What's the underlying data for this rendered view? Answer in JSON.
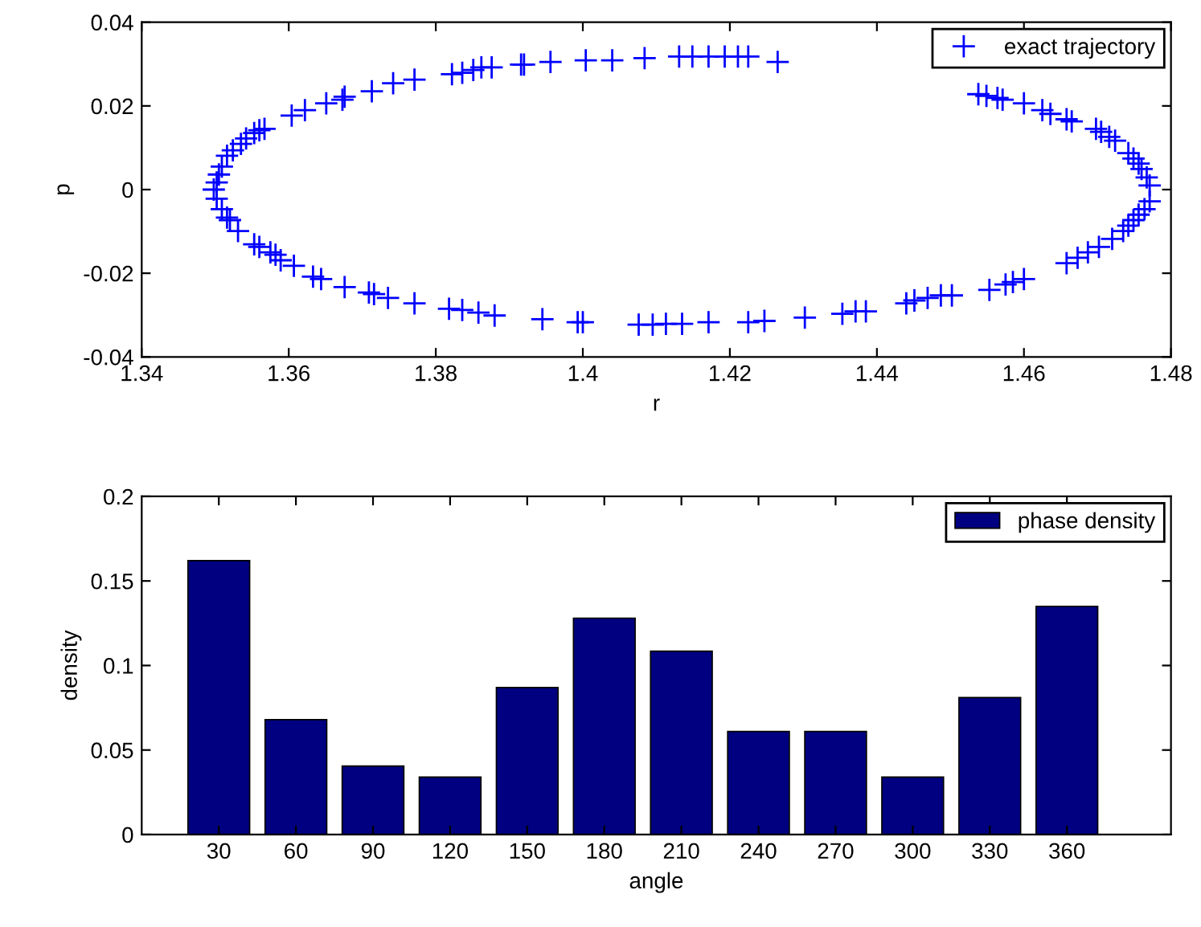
{
  "chart_data": [
    {
      "type": "scatter",
      "xlabel": "r",
      "ylabel": "p",
      "xlim": [
        1.34,
        1.48
      ],
      "xticks": [
        1.34,
        1.36,
        1.38,
        1.4,
        1.42,
        1.44,
        1.46,
        1.48
      ],
      "ylim": [
        -0.04,
        0.04
      ],
      "yticks": [
        -0.04,
        -0.02,
        0,
        0.02,
        0.04
      ],
      "grid": false,
      "legend": "top right",
      "marker": "cross",
      "series": [
        {
          "name": "exact trajectory",
          "color": "#0000ff",
          "x": [
            1.4084,
            1.404,
            1.4004,
            1.3956,
            1.392,
            1.3916,
            1.3876,
            1.3862,
            1.3851,
            1.3836,
            1.3822,
            1.3771,
            1.3742,
            1.3713,
            1.3676,
            1.3673,
            1.3651,
            1.3622,
            1.3604,
            1.3567,
            1.356,
            1.3553,
            1.3542,
            1.3535,
            1.3524,
            1.3516,
            1.3509,
            1.3505,
            1.3502,
            1.3498,
            1.3502,
            1.3509,
            1.3516,
            1.352,
            1.3531,
            1.3553,
            1.356,
            1.3575,
            1.3582,
            1.3589,
            1.3607,
            1.3633,
            1.3644,
            1.3676,
            1.3709,
            1.3716,
            1.3735,
            1.3771,
            1.3818,
            1.3836,
            1.3858,
            1.388,
            1.3945,
            1.3993,
            1.4,
            1.4076,
            1.4095,
            1.4131,
            1.4149,
            1.4171,
            1.4193,
            1.4211,
            1.4225,
            1.4265,
            1.4538,
            1.4549,
            1.4564,
            1.4571,
            1.46,
            1.4625,
            1.4636,
            1.4658,
            1.4665,
            1.4698,
            1.4705,
            1.4716,
            1.4724,
            1.4742,
            1.4749,
            1.4756,
            1.476,
            1.4767,
            1.4771,
            1.4771,
            1.4764,
            1.4756,
            1.4749,
            1.4742,
            1.4735,
            1.472,
            1.4702,
            1.4687,
            1.4673,
            1.4658,
            1.46,
            1.4585,
            1.4575,
            1.4553,
            1.4502,
            1.4487,
            1.4469,
            1.4451,
            1.444,
            1.4385,
            1.4371,
            1.4353,
            1.4302,
            1.4247,
            1.4225,
            1.4171,
            1.4135,
            1.4113
          ],
          "values": [
            0.0314,
            0.0309,
            0.0309,
            0.0305,
            0.0299,
            0.0299,
            0.0292,
            0.0292,
            0.0286,
            0.0279,
            0.0276,
            0.0263,
            0.0254,
            0.0235,
            0.0222,
            0.0215,
            0.0206,
            0.019,
            0.0177,
            0.0145,
            0.0142,
            0.0135,
            0.0122,
            0.0109,
            0.0094,
            0.0081,
            0.0055,
            0.0036,
            0.0017,
            0.0,
            -0.0022,
            -0.0047,
            -0.0067,
            -0.0073,
            -0.0099,
            -0.0131,
            -0.0137,
            -0.015,
            -0.0156,
            -0.0169,
            -0.0182,
            -0.0208,
            -0.0214,
            -0.0233,
            -0.0246,
            -0.025,
            -0.0259,
            -0.0272,
            -0.0285,
            -0.0288,
            -0.0294,
            -0.0301,
            -0.031,
            -0.0317,
            -0.0317,
            -0.0323,
            -0.0323,
            0.0318,
            0.0318,
            0.0318,
            0.0318,
            0.0318,
            0.0318,
            0.0305,
            0.0228,
            0.0224,
            0.0219,
            0.0215,
            0.0206,
            0.019,
            0.0181,
            0.0168,
            0.0163,
            0.0145,
            0.0138,
            0.0126,
            0.0117,
            0.0087,
            0.0074,
            0.0062,
            0.0049,
            0.0029,
            0.001,
            -0.0028,
            -0.0047,
            -0.006,
            -0.0073,
            -0.0086,
            -0.0099,
            -0.0118,
            -0.0137,
            -0.015,
            -0.0163,
            -0.0176,
            -0.0214,
            -0.0221,
            -0.0227,
            -0.024,
            -0.0253,
            -0.0253,
            -0.0259,
            -0.0265,
            -0.0272,
            -0.0291,
            -0.0291,
            -0.0297,
            -0.0306,
            -0.0314,
            -0.0317,
            -0.0317,
            -0.0321,
            -0.0321
          ]
        }
      ]
    },
    {
      "type": "bar",
      "xlabel": "angle",
      "ylabel": "density",
      "ylim": [
        0,
        0.2
      ],
      "yticks": [
        0,
        0.05,
        0.1,
        0.15,
        0.2
      ],
      "grid": false,
      "legend": "top right",
      "categories": [
        "30",
        "60",
        "90",
        "120",
        "150",
        "180",
        "210",
        "240",
        "270",
        "300",
        "330",
        "360"
      ],
      "series": [
        {
          "name": "phase density",
          "color": "#000080",
          "values": [
            0.162,
            0.068,
            0.0405,
            0.034,
            0.087,
            0.128,
            0.1085,
            0.061,
            0.061,
            0.034,
            0.081,
            0.135
          ]
        }
      ]
    }
  ]
}
